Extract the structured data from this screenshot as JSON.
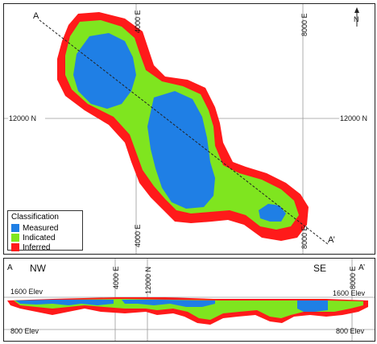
{
  "plan": {
    "section_start": "A",
    "section_end": "A’",
    "north_label": "N",
    "grid_labels": {
      "easting_left_top": "4000 E",
      "easting_right_top": "8000 E",
      "easting_left_bottom": "4000 E",
      "easting_right_bottom": "8000 E",
      "northing_left": "12000 N",
      "northing_right": "12000 N"
    }
  },
  "legend": {
    "title": "Classification",
    "items": [
      {
        "label": "Measured",
        "color": "#1f7fe5"
      },
      {
        "label": "Indicated",
        "color": "#7fe51f"
      },
      {
        "label": "Inferred",
        "color": "#ff1a1a"
      }
    ]
  },
  "section": {
    "start": "A",
    "end": "A’",
    "dir_left": "NW",
    "dir_right": "SE",
    "grid_labels": {
      "easting_left": "4000 E",
      "northing": "12000 N",
      "easting_right": "8000 E"
    },
    "elev_labels": {
      "top_left": "1600 Elev",
      "top_right": "1600 Elev",
      "bottom_left": "800 Elev",
      "bottom_right": "800 Elev"
    }
  },
  "colors": {
    "measured": "#1f7fe5",
    "indicated": "#7fe51f",
    "inferred": "#ff1a1a",
    "grid": "#999999"
  }
}
